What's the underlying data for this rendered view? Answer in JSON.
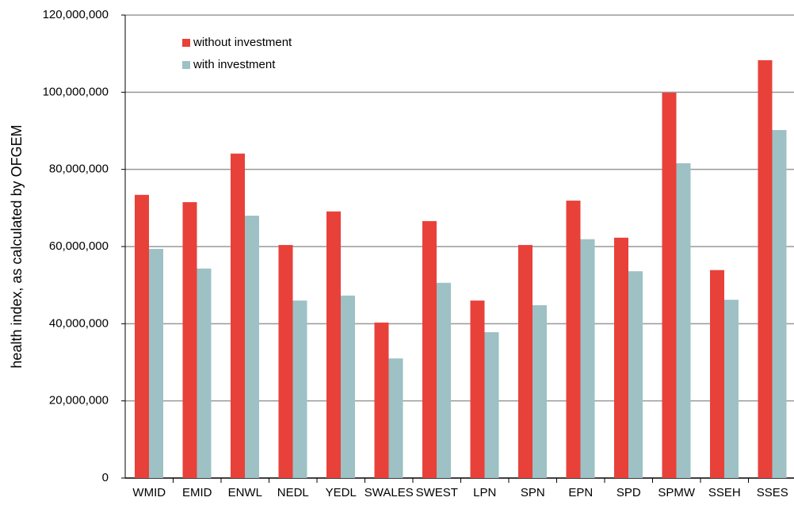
{
  "chart_data": {
    "type": "bar",
    "y_label": "health index, as calculated by OFGEM",
    "categories": [
      "WMID",
      "EMID",
      "ENWL",
      "NEDL",
      "YEDL",
      "SWALES",
      "SWEST",
      "LPN",
      "SPN",
      "EPN",
      "SPD",
      "SPMW",
      "SSEH",
      "SSES"
    ],
    "series": [
      {
        "name": "without investment",
        "color": "#e8413a",
        "values": [
          73.4,
          71.5,
          84.1,
          60.4,
          69.1,
          40.3,
          66.6,
          46.0,
          60.4,
          71.9,
          62.3,
          99.9,
          53.9,
          108.3
        ]
      },
      {
        "name": "with investment",
        "color": "#9dc1c4",
        "values": [
          59.4,
          54.3,
          68.0,
          46.0,
          47.3,
          31.0,
          50.6,
          37.8,
          44.8,
          61.9,
          53.6,
          81.6,
          46.2,
          90.2
        ]
      }
    ],
    "ylim": [
      0,
      120
    ],
    "yticks": [
      0,
      {
        "value": 20,
        "label": "20,000,000"
      },
      {
        "value": 40,
        "label": "40,000,000"
      },
      {
        "value": 60,
        "label": "60,000,000"
      },
      {
        "value": 80,
        "label": "80,000,000"
      },
      {
        "value": 100,
        "label": "100,000,000"
      },
      {
        "value": 120,
        "label": "120,000,000"
      }
    ],
    "grid": true
  }
}
